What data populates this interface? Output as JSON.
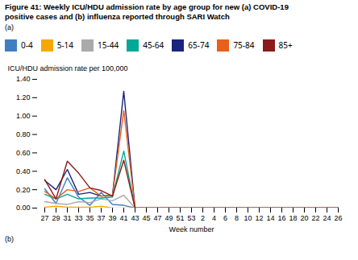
{
  "chart_data": {
    "type": "line",
    "title": "Figure 41: Weekly ICU/HDU admission rate by age group for new (a) COVID-19",
    "subtitle": "positive cases and (b) influenza reported through SARI Watch",
    "annotations": [
      "(a)",
      "(b)"
    ],
    "x_label": "Week number",
    "y_label": "ICU/HDU admission rate per 100,000",
    "categories": [
      "27",
      "29",
      "31",
      "33",
      "35",
      "37",
      "39",
      "41",
      "43",
      "45",
      "47",
      "49",
      "51",
      "53",
      "2",
      "4",
      "6",
      "8",
      "10",
      "12",
      "14",
      "16",
      "18",
      "20",
      "22",
      "24",
      "26"
    ],
    "series": [
      {
        "name": "0-4",
        "color": "#3f7fc1",
        "values": [
          0.21,
          0.05,
          0.33,
          0.12,
          0.03,
          0.17,
          0.04,
          0.03,
          0.0,
          0.0,
          0.0,
          0.0,
          0.0,
          0.0,
          0.0,
          0.0,
          0.0,
          0.0,
          0.0,
          0.0,
          0.0,
          0.0,
          0.0,
          0.0,
          0.0,
          0.0,
          0.0
        ]
      },
      {
        "name": "5-14",
        "color": "#f5a800",
        "values": [
          0.01,
          0.02,
          0.01,
          0.01,
          0.01,
          0.02,
          0.0,
          0.0,
          0.0,
          0.0,
          0.0,
          0.0,
          0.0,
          0.0,
          0.0,
          0.0,
          0.0,
          0.0,
          0.0,
          0.0,
          0.0,
          0.0,
          0.0,
          0.0,
          0.0,
          0.0,
          0.0
        ]
      },
      {
        "name": "15-44",
        "color": "#aaaaaa",
        "values": [
          0.07,
          0.05,
          0.04,
          0.07,
          0.06,
          0.1,
          0.08,
          0.14,
          0.0,
          0.0,
          0.0,
          0.0,
          0.0,
          0.0,
          0.0,
          0.0,
          0.0,
          0.0,
          0.0,
          0.0,
          0.0,
          0.0,
          0.0,
          0.0,
          0.0,
          0.0,
          0.0
        ]
      },
      {
        "name": "45-64",
        "color": "#00a896",
        "values": [
          0.15,
          0.1,
          0.15,
          0.1,
          0.11,
          0.11,
          0.12,
          0.62,
          0.0,
          0.0,
          0.0,
          0.0,
          0.0,
          0.0,
          0.0,
          0.0,
          0.0,
          0.0,
          0.0,
          0.0,
          0.0,
          0.0,
          0.0,
          0.0,
          0.0,
          0.0,
          0.0
        ]
      },
      {
        "name": "65-74",
        "color": "#1a237e",
        "values": [
          0.3,
          0.2,
          0.42,
          0.15,
          0.17,
          0.13,
          0.14,
          1.27,
          0.0,
          0.0,
          0.0,
          0.0,
          0.0,
          0.0,
          0.0,
          0.0,
          0.0,
          0.0,
          0.0,
          0.0,
          0.0,
          0.0,
          0.0,
          0.0,
          0.0,
          0.0,
          0.0
        ]
      },
      {
        "name": "75-84",
        "color": "#e8601c",
        "values": [
          0.18,
          0.1,
          0.2,
          0.18,
          0.22,
          0.13,
          0.14,
          1.06,
          0.0,
          0.0,
          0.0,
          0.0,
          0.0,
          0.0,
          0.0,
          0.0,
          0.0,
          0.0,
          0.0,
          0.0,
          0.0,
          0.0,
          0.0,
          0.0,
          0.0,
          0.0,
          0.0
        ]
      },
      {
        "name": "85+",
        "color": "#8b1a1a",
        "values": [
          0.31,
          0.1,
          0.51,
          0.38,
          0.22,
          0.19,
          0.13,
          0.52,
          0.0,
          0.0,
          0.0,
          0.0,
          0.0,
          0.0,
          0.0,
          0.0,
          0.0,
          0.0,
          0.0,
          0.0,
          0.0,
          0.0,
          0.0,
          0.0,
          0.0,
          0.0,
          0.0
        ]
      }
    ],
    "ylim": [
      0.0,
      1.4
    ],
    "yticks": [
      {
        "value": 0.0,
        "label": "0.00"
      },
      {
        "value": 0.2,
        "label": "0.20"
      },
      {
        "value": 0.4,
        "label": "0.40"
      },
      {
        "value": 0.6,
        "label": "0.60"
      },
      {
        "value": 0.8,
        "label": "0.80"
      },
      {
        "value": 1.0,
        "label": "1.00"
      },
      {
        "value": 1.2,
        "label": "1.20"
      },
      {
        "value": 1.4,
        "label": "1.40"
      }
    ],
    "grid": false,
    "legend": "top"
  }
}
